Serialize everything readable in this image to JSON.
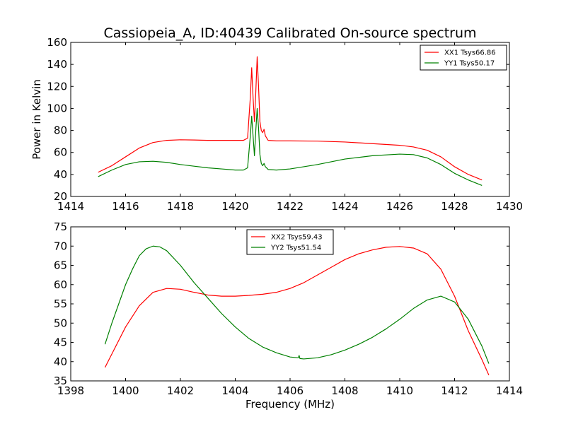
{
  "chart_data": [
    {
      "type": "line",
      "title": "Cassiopeia_A, ID:40439 Calibrated On-source spectrum",
      "xlabel": "",
      "ylabel": "Power in Kelvin",
      "xlim": [
        1414,
        1430
      ],
      "ylim": [
        20,
        160
      ],
      "xticks": [
        1414,
        1416,
        1418,
        1420,
        1422,
        1424,
        1426,
        1428,
        1430
      ],
      "yticks": [
        20,
        40,
        60,
        80,
        100,
        120,
        140,
        160
      ],
      "grid": false,
      "legend_position": "upper right",
      "series": [
        {
          "name": "XX1 Tsys66.86",
          "color": "#ff0000",
          "points": [
            [
              1415.0,
              42
            ],
            [
              1415.5,
              48
            ],
            [
              1416.0,
              56
            ],
            [
              1416.5,
              64
            ],
            [
              1417.0,
              69
            ],
            [
              1417.5,
              71
            ],
            [
              1418.0,
              71.5
            ],
            [
              1418.5,
              71.3
            ],
            [
              1419.0,
              71
            ],
            [
              1419.5,
              71
            ],
            [
              1420.0,
              71
            ],
            [
              1420.3,
              71
            ],
            [
              1420.45,
              73
            ],
            [
              1420.55,
              110
            ],
            [
              1420.6,
              137
            ],
            [
              1420.65,
              110
            ],
            [
              1420.7,
              88
            ],
            [
              1420.75,
              115
            ],
            [
              1420.8,
              147
            ],
            [
              1420.85,
              120
            ],
            [
              1420.9,
              88
            ],
            [
              1420.95,
              80
            ],
            [
              1421.0,
              78
            ],
            [
              1421.05,
              81
            ],
            [
              1421.1,
              75
            ],
            [
              1421.2,
              71
            ],
            [
              1421.5,
              70.5
            ],
            [
              1422.0,
              70.5
            ],
            [
              1423.0,
              70.3
            ],
            [
              1424.0,
              69.5
            ],
            [
              1425.0,
              68
            ],
            [
              1426.0,
              66.5
            ],
            [
              1426.5,
              65
            ],
            [
              1427.0,
              62
            ],
            [
              1427.5,
              56
            ],
            [
              1428.0,
              47
            ],
            [
              1428.5,
              40
            ],
            [
              1429.0,
              35
            ]
          ]
        },
        {
          "name": "YY1 Tsys50.17",
          "color": "#008000",
          "points": [
            [
              1415.0,
              38
            ],
            [
              1415.5,
              44
            ],
            [
              1416.0,
              49
            ],
            [
              1416.5,
              51.5
            ],
            [
              1417.0,
              52
            ],
            [
              1417.5,
              51
            ],
            [
              1418.0,
              49
            ],
            [
              1418.5,
              47.5
            ],
            [
              1419.0,
              46
            ],
            [
              1419.5,
              45
            ],
            [
              1420.0,
              44
            ],
            [
              1420.3,
              44
            ],
            [
              1420.45,
              46
            ],
            [
              1420.55,
              75
            ],
            [
              1420.6,
              93
            ],
            [
              1420.65,
              75
            ],
            [
              1420.7,
              57
            ],
            [
              1420.75,
              80
            ],
            [
              1420.8,
              100
            ],
            [
              1420.85,
              82
            ],
            [
              1420.9,
              58
            ],
            [
              1420.95,
              50
            ],
            [
              1421.0,
              48
            ],
            [
              1421.05,
              50
            ],
            [
              1421.1,
              47
            ],
            [
              1421.2,
              44.5
            ],
            [
              1421.5,
              44
            ],
            [
              1422.0,
              45
            ],
            [
              1423.0,
              49
            ],
            [
              1424.0,
              54
            ],
            [
              1425.0,
              57
            ],
            [
              1426.0,
              58.5
            ],
            [
              1426.5,
              58
            ],
            [
              1427.0,
              55
            ],
            [
              1427.5,
              49
            ],
            [
              1428.0,
              41
            ],
            [
              1428.5,
              35
            ],
            [
              1429.0,
              30
            ]
          ]
        }
      ]
    },
    {
      "type": "line",
      "title": "",
      "xlabel": "Frequency (MHz)",
      "ylabel": "",
      "xlim": [
        1398,
        1414
      ],
      "ylim": [
        35,
        75
      ],
      "xticks": [
        1398,
        1400,
        1402,
        1404,
        1406,
        1408,
        1410,
        1412,
        1414
      ],
      "yticks": [
        35,
        40,
        45,
        50,
        55,
        60,
        65,
        70,
        75
      ],
      "grid": false,
      "legend_position": "upper center",
      "series": [
        {
          "name": "XX2 Tsys59.43",
          "color": "#ff0000",
          "points": [
            [
              1399.25,
              38.5
            ],
            [
              1399.5,
              42
            ],
            [
              1400.0,
              49
            ],
            [
              1400.5,
              54.5
            ],
            [
              1401.0,
              58
            ],
            [
              1401.5,
              59
            ],
            [
              1402.0,
              58.8
            ],
            [
              1402.5,
              58
            ],
            [
              1403.0,
              57.3
            ],
            [
              1403.5,
              57
            ],
            [
              1404.0,
              57
            ],
            [
              1404.5,
              57.2
            ],
            [
              1405.0,
              57.5
            ],
            [
              1405.5,
              58
            ],
            [
              1406.0,
              59
            ],
            [
              1406.5,
              60.5
            ],
            [
              1407.0,
              62.5
            ],
            [
              1407.5,
              64.5
            ],
            [
              1408.0,
              66.5
            ],
            [
              1408.5,
              68
            ],
            [
              1409.0,
              69
            ],
            [
              1409.5,
              69.7
            ],
            [
              1410.0,
              69.9
            ],
            [
              1410.5,
              69.5
            ],
            [
              1411.0,
              68
            ],
            [
              1411.5,
              64
            ],
            [
              1412.0,
              57
            ],
            [
              1412.5,
              48
            ],
            [
              1413.0,
              40.5
            ],
            [
              1413.25,
              36.5
            ]
          ]
        },
        {
          "name": "YY2 Tsys51.54",
          "color": "#008000",
          "points": [
            [
              1399.25,
              44.5
            ],
            [
              1399.5,
              50
            ],
            [
              1399.75,
              55
            ],
            [
              1400.0,
              60
            ],
            [
              1400.25,
              64
            ],
            [
              1400.5,
              67.5
            ],
            [
              1400.75,
              69.3
            ],
            [
              1401.0,
              70
            ],
            [
              1401.25,
              69.8
            ],
            [
              1401.5,
              68.8
            ],
            [
              1402.0,
              65
            ],
            [
              1402.5,
              60.5
            ],
            [
              1403.0,
              56.5
            ],
            [
              1403.5,
              52.5
            ],
            [
              1404.0,
              49
            ],
            [
              1404.5,
              46
            ],
            [
              1405.0,
              43.8
            ],
            [
              1405.5,
              42.3
            ],
            [
              1406.0,
              41.2
            ],
            [
              1406.3,
              41.0
            ],
            [
              1406.33,
              41.6
            ],
            [
              1406.36,
              40.8
            ],
            [
              1406.5,
              40.7
            ],
            [
              1407.0,
              41
            ],
            [
              1407.5,
              41.8
            ],
            [
              1408.0,
              43
            ],
            [
              1408.5,
              44.5
            ],
            [
              1409.0,
              46.3
            ],
            [
              1409.5,
              48.5
            ],
            [
              1410.0,
              51
            ],
            [
              1410.5,
              53.8
            ],
            [
              1411.0,
              56
            ],
            [
              1411.5,
              57
            ],
            [
              1412.0,
              55.5
            ],
            [
              1412.5,
              51
            ],
            [
              1413.0,
              44
            ],
            [
              1413.25,
              39.5
            ]
          ]
        }
      ]
    }
  ]
}
